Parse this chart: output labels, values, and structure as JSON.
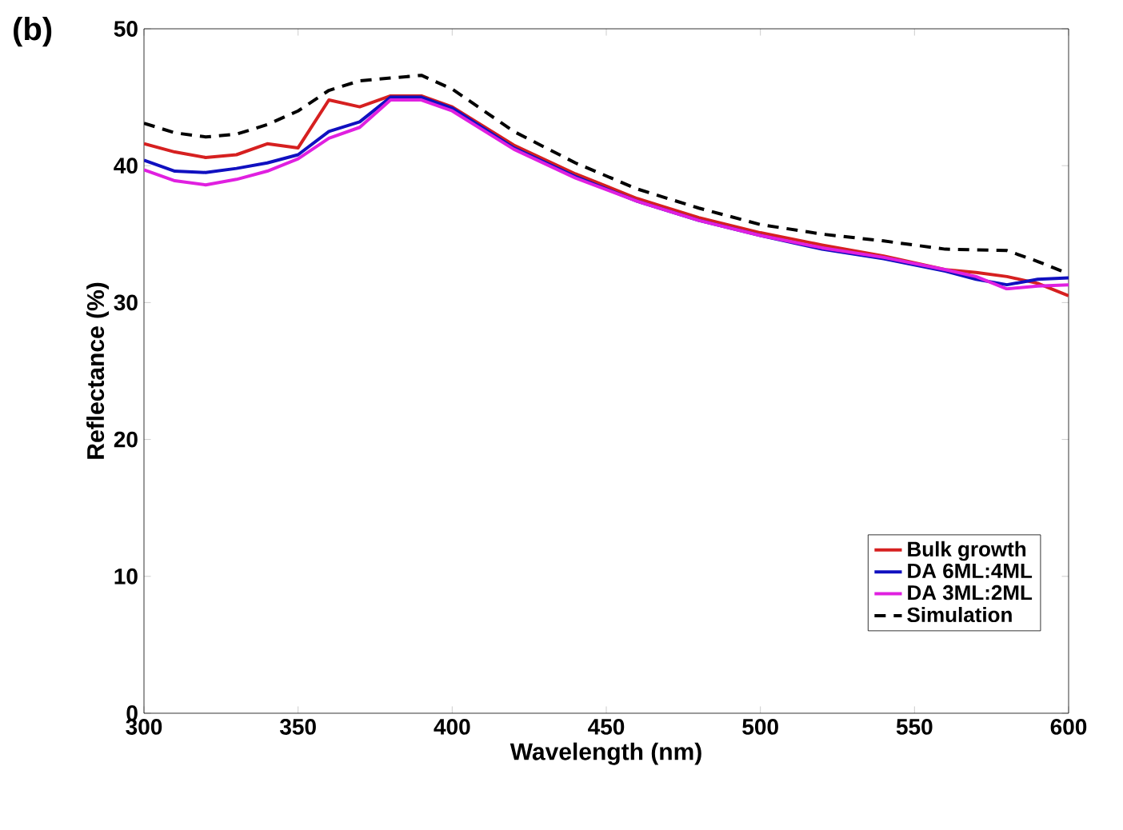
{
  "chart_data": {
    "type": "line",
    "xlabel": "Wavelength (nm)",
    "ylabel": "Reflectance (%)",
    "annotations": [
      "(b)"
    ],
    "xlim": [
      300,
      600
    ],
    "ylim": [
      0,
      50
    ],
    "xticks": [
      300,
      350,
      400,
      450,
      500,
      550,
      600
    ],
    "yticks": [
      0,
      10,
      20,
      30,
      40,
      50
    ],
    "legend": "bottom right",
    "grid": false,
    "series": [
      {
        "name": "Bulk growth",
        "color": "#d62020",
        "line_style": "solid",
        "x": [
          300,
          310,
          320,
          330,
          340,
          350,
          360,
          370,
          380,
          390,
          400,
          420,
          440,
          460,
          480,
          500,
          520,
          540,
          560,
          570,
          580,
          590,
          600
        ],
        "values": [
          41.6,
          41.0,
          40.6,
          40.8,
          41.6,
          41.3,
          44.8,
          44.3,
          45.1,
          45.1,
          44.3,
          41.5,
          39.4,
          37.6,
          36.2,
          35.1,
          34.2,
          33.4,
          32.4,
          32.2,
          31.9,
          31.4,
          30.5
        ]
      },
      {
        "name": "DA 6ML:4ML",
        "color": "#1010c0",
        "line_style": "solid",
        "x": [
          300,
          310,
          320,
          330,
          340,
          350,
          360,
          370,
          380,
          390,
          400,
          420,
          440,
          460,
          480,
          500,
          520,
          540,
          560,
          570,
          580,
          590,
          600
        ],
        "values": [
          40.4,
          39.6,
          39.5,
          39.8,
          40.2,
          40.8,
          42.5,
          43.2,
          45.0,
          45.0,
          44.2,
          41.3,
          39.2,
          37.4,
          36.0,
          34.9,
          33.9,
          33.2,
          32.3,
          31.7,
          31.3,
          31.7,
          31.8
        ]
      },
      {
        "name": "DA 3ML:2ML",
        "color": "#e020e0",
        "line_style": "solid",
        "x": [
          300,
          310,
          320,
          330,
          340,
          350,
          360,
          370,
          380,
          390,
          400,
          420,
          440,
          460,
          480,
          500,
          520,
          540,
          560,
          570,
          580,
          590,
          600
        ],
        "values": [
          39.7,
          38.9,
          38.6,
          39.0,
          39.6,
          40.5,
          42.0,
          42.8,
          44.8,
          44.8,
          44.0,
          41.2,
          39.1,
          37.4,
          36.0,
          34.9,
          34.0,
          33.3,
          32.4,
          31.9,
          31.0,
          31.2,
          31.3
        ]
      },
      {
        "name": "Simulation",
        "color": "#000000",
        "line_style": "dashed",
        "x": [
          300,
          310,
          320,
          330,
          340,
          350,
          360,
          370,
          380,
          390,
          400,
          420,
          440,
          460,
          480,
          500,
          520,
          540,
          560,
          580,
          590,
          600
        ],
        "values": [
          43.1,
          42.4,
          42.1,
          42.3,
          43.0,
          44.0,
          45.5,
          46.2,
          46.4,
          46.6,
          45.6,
          42.5,
          40.2,
          38.3,
          36.9,
          35.7,
          35.0,
          34.5,
          33.9,
          33.8,
          33.0,
          32.1
        ]
      }
    ]
  }
}
